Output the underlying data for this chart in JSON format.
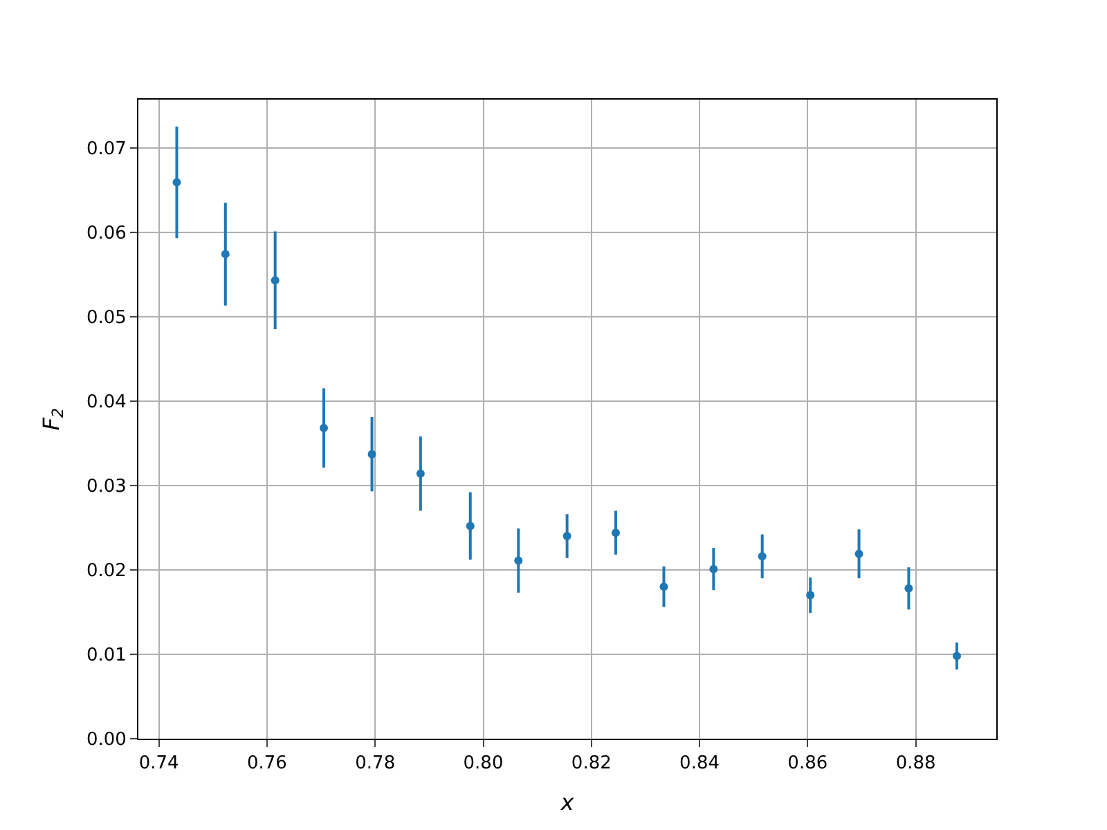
{
  "chart_data": {
    "type": "scatter",
    "xlabel": "x",
    "ylabel": "F$_{2}$",
    "x": [
      0.7433,
      0.7523,
      0.7615,
      0.7705,
      0.7794,
      0.7884,
      0.7976,
      0.8065,
      0.8155,
      0.8245,
      0.8334,
      0.8426,
      0.8516,
      0.8605,
      0.8695,
      0.8787,
      0.8876
    ],
    "series": [
      {
        "color": "#1f77b4",
        "values": [
          0.0659,
          0.0574,
          0.0543,
          0.0368,
          0.0337,
          0.0314,
          0.0252,
          0.0211,
          0.024,
          0.0244,
          0.018,
          0.0201,
          0.0216,
          0.017,
          0.0219,
          0.0178,
          0.0098
        ],
        "errors": [
          0.0066,
          0.0061,
          0.0058,
          0.0047,
          0.0044,
          0.0044,
          0.004,
          0.0038,
          0.0026,
          0.0026,
          0.0024,
          0.0025,
          0.0026,
          0.0021,
          0.0029,
          0.0025,
          0.0016
        ]
      }
    ],
    "xlim": [
      0.7362,
      0.8949
    ],
    "ylim": [
      0,
      0.0757
    ],
    "xticks": [
      {
        "value": 0.74,
        "label": "0.74"
      },
      {
        "value": 0.76,
        "label": "0.76"
      },
      {
        "value": 0.78,
        "label": "0.78"
      },
      {
        "value": 0.8,
        "label": "0.80"
      },
      {
        "value": 0.82,
        "label": "0.82"
      },
      {
        "value": 0.84,
        "label": "0.84"
      },
      {
        "value": 0.86,
        "label": "0.86"
      },
      {
        "value": 0.88,
        "label": "0.88"
      }
    ],
    "yticks": [
      {
        "value": 0,
        "label": "0.00"
      },
      {
        "value": 0.01,
        "label": "0.01"
      },
      {
        "value": 0.02,
        "label": "0.02"
      },
      {
        "value": 0.03,
        "label": "0.03"
      },
      {
        "value": 0.04,
        "label": "0.04"
      },
      {
        "value": 0.05,
        "label": "0.05"
      },
      {
        "value": 0.06,
        "label": "0.06"
      },
      {
        "value": 0.07,
        "label": "0.07"
      }
    ],
    "grid": true,
    "marker": "circle"
  }
}
